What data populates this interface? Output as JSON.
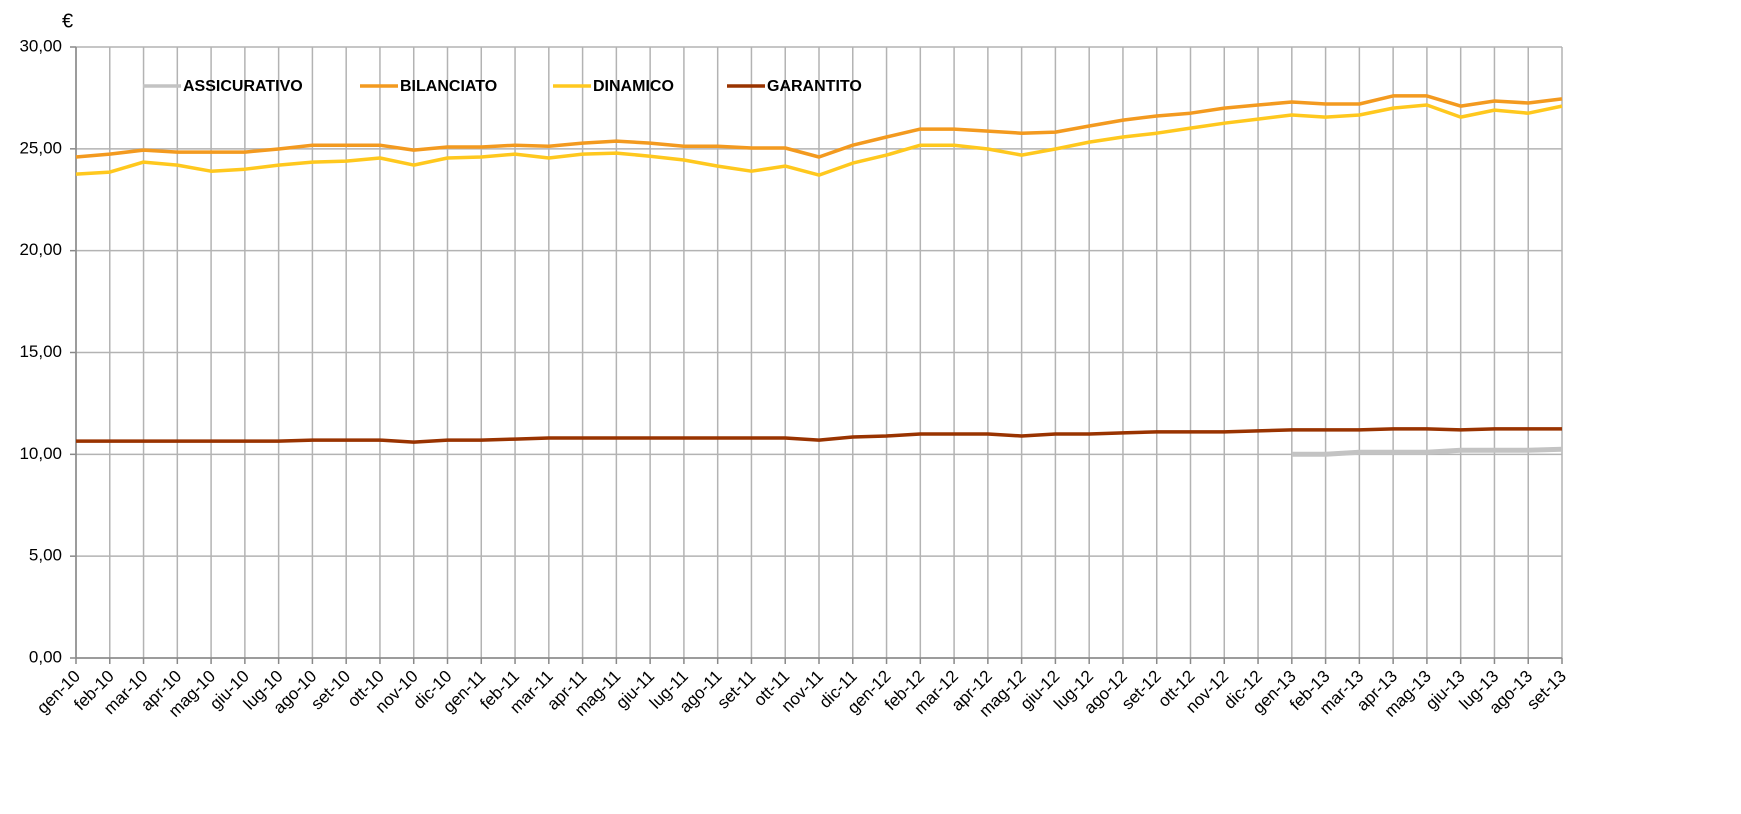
{
  "chart_data": {
    "type": "line",
    "y_label": "€",
    "categories": [
      "gen-10",
      "feb-10",
      "mar-10",
      "apr-10",
      "mag-10",
      "giu-10",
      "lug-10",
      "ago-10",
      "set-10",
      "ott-10",
      "nov-10",
      "dic-10",
      "gen-11",
      "feb-11",
      "mar-11",
      "apr-11",
      "mag-11",
      "giu-11",
      "lug-11",
      "ago-11",
      "set-11",
      "ott-11",
      "nov-11",
      "dic-11",
      "gen-12",
      "feb-12",
      "mar-12",
      "apr-12",
      "mag-12",
      "giu-12",
      "lug-12",
      "ago-12",
      "set-12",
      "ott-12",
      "nov-12",
      "dic-12",
      "gen-13",
      "feb-13",
      "mar-13",
      "apr-13",
      "mag-13",
      "giu-13",
      "lug-13",
      "ago-13",
      "set-13"
    ],
    "series": [
      {
        "name": "ASSICURATIVO",
        "color": "#c3c3c3",
        "values": [
          null,
          null,
          null,
          null,
          null,
          null,
          null,
          null,
          null,
          null,
          null,
          null,
          null,
          null,
          null,
          null,
          null,
          null,
          null,
          null,
          null,
          null,
          null,
          null,
          null,
          null,
          null,
          null,
          null,
          null,
          null,
          null,
          null,
          null,
          null,
          null,
          10.0,
          10.0,
          10.1,
          10.1,
          10.1,
          10.2,
          10.2,
          10.2,
          10.25
        ]
      },
      {
        "name": "BILANCIATO",
        "color": "#f39a1f",
        "values": [
          24.6,
          24.74,
          24.94,
          24.84,
          24.84,
          24.84,
          24.99,
          25.18,
          25.18,
          25.18,
          24.94,
          25.09,
          25.09,
          25.18,
          25.13,
          25.28,
          25.38,
          25.28,
          25.13,
          25.13,
          25.04,
          25.04,
          24.6,
          25.18,
          25.58,
          25.97,
          25.97,
          25.87,
          25.77,
          25.82,
          26.12,
          26.41,
          26.61,
          26.75,
          27.0,
          27.15,
          27.3,
          27.2,
          27.2,
          27.6,
          27.6,
          27.1,
          27.35,
          27.25,
          27.45
        ]
      },
      {
        "name": "DINAMICO",
        "color": "#ffc81e",
        "values": [
          23.76,
          23.86,
          24.35,
          24.2,
          23.9,
          24.0,
          24.2,
          24.35,
          24.4,
          24.55,
          24.2,
          24.55,
          24.6,
          24.74,
          24.55,
          24.74,
          24.79,
          24.64,
          24.45,
          24.15,
          23.9,
          24.15,
          23.71,
          24.3,
          24.69,
          25.18,
          25.18,
          24.99,
          24.69,
          24.99,
          25.33,
          25.58,
          25.77,
          26.02,
          26.26,
          26.46,
          26.66,
          26.56,
          26.66,
          27.0,
          27.15,
          26.56,
          26.9,
          26.75,
          27.1
        ]
      },
      {
        "name": "GARANTITO",
        "color": "#993300",
        "values": [
          10.65,
          10.65,
          10.65,
          10.65,
          10.65,
          10.65,
          10.65,
          10.7,
          10.7,
          10.7,
          10.6,
          10.7,
          10.7,
          10.75,
          10.8,
          10.8,
          10.8,
          10.8,
          10.8,
          10.8,
          10.8,
          10.8,
          10.7,
          10.85,
          10.9,
          11.0,
          11.0,
          11.0,
          10.9,
          11.0,
          11.0,
          11.05,
          11.1,
          11.1,
          11.1,
          11.15,
          11.2,
          11.2,
          11.2,
          11.25,
          11.25,
          11.2,
          11.25,
          11.25,
          11.25
        ]
      }
    ],
    "ylim": [
      0,
      30
    ],
    "yticks": [
      {
        "value": 0,
        "label": "0,00"
      },
      {
        "value": 5,
        "label": "5,00"
      },
      {
        "value": 10,
        "label": "10,00"
      },
      {
        "value": 15,
        "label": "15,00"
      },
      {
        "value": 20,
        "label": "20,00"
      },
      {
        "value": 25,
        "label": "25,00"
      },
      {
        "value": 30,
        "label": "30,00"
      }
    ],
    "grid": true,
    "legend": "top-left"
  }
}
